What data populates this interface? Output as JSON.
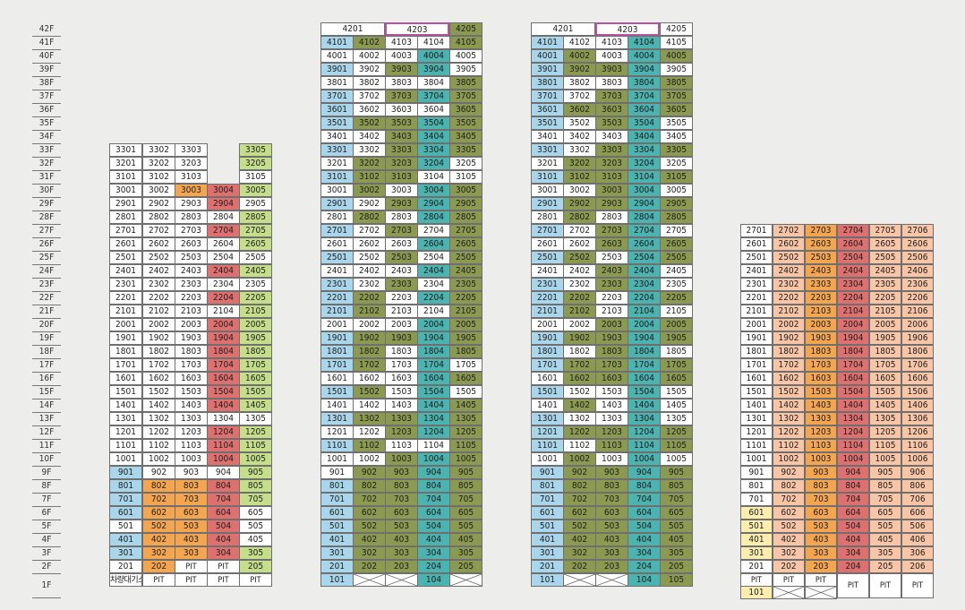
{
  "colors": {
    "white": "#ffffff",
    "blue": "#a9d6ea",
    "olive": "#8b9a50",
    "teal": "#4bb3b0",
    "lime": "#c4de8a",
    "orange": "#f3a64e",
    "red": "#df7070",
    "yellow": "#fdeeb0",
    "salmon": "#f8c6a7",
    "headborder": "#b5549e"
  },
  "floors": [
    "42F",
    "41F",
    "40F",
    "39F",
    "38F",
    "37F",
    "36F",
    "35F",
    "34F",
    "33F",
    "32F",
    "31F",
    "30F",
    "29F",
    "28F",
    "27F",
    "26F",
    "25F",
    "24F",
    "23F",
    "22F",
    "21F",
    "20F",
    "19F",
    "18F",
    "17F",
    "16F",
    "15F",
    "14F",
    "13F",
    "12F",
    "11F",
    "10F",
    "9F",
    "8F",
    "7F",
    "6F",
    "5F",
    "4F",
    "3F",
    "2F",
    "1F"
  ],
  "building1": {
    "bottom": {
      "labels": [
        "차량대기소",
        "PIT",
        "PIT",
        "PIT",
        "PIT"
      ]
    }
  },
  "building2": {
    "header": [
      "4201",
      "4203",
      "4205"
    ],
    "bottom": {
      "unit": "101",
      "pit_unit": "104"
    }
  },
  "building3": {
    "header": [
      "4201",
      "4203",
      "4205"
    ],
    "bottom": {
      "unit": "101",
      "pit_units": [
        "104",
        "105"
      ]
    }
  },
  "building4": {
    "bottom": {
      "labels": [
        "PIT",
        "PIT",
        "PIT",
        "PIT",
        "PIT",
        "PIT"
      ],
      "unit": "101"
    }
  }
}
